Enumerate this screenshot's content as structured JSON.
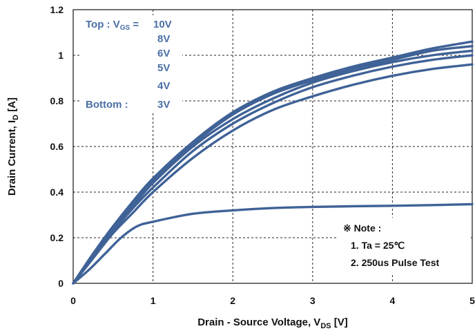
{
  "chart_data": {
    "type": "line",
    "xlabel": "Drain - Source Voltage, V",
    "xlabel_sub": "DS",
    "xlabel_unit": " [V]",
    "ylabel": "Drain Current, I",
    "ylabel_sub": "D",
    "ylabel_unit": " [A]",
    "xlim": [
      0,
      5
    ],
    "ylim": [
      0,
      1.2
    ],
    "x_ticks": [
      "0",
      "1",
      "2",
      "3",
      "4",
      "5"
    ],
    "y_ticks": [
      "0",
      "0.2",
      "0.4",
      "0.6",
      "0.8",
      "1",
      "1.2"
    ],
    "grid": "dashed",
    "legend": {
      "top_label": "Top : V",
      "top_sub": "GS",
      "top_eq": " =",
      "bottom_label": "Bottom :",
      "values": [
        "10V",
        "8V",
        "6V",
        "5V",
        "4V",
        "3V"
      ]
    },
    "note": {
      "title": "※ Note :",
      "lines": [
        "1. Ta = 25℃",
        "2. 250us Pulse Test"
      ]
    },
    "series": [
      {
        "x": [
          0,
          0.25,
          0.5,
          0.75,
          1,
          1.5,
          2,
          2.5,
          3,
          3.5,
          4,
          4.5,
          5
        ],
        "values": [
          0,
          0.13,
          0.25,
          0.36,
          0.46,
          0.62,
          0.75,
          0.84,
          0.9,
          0.95,
          0.99,
          1.03,
          1.06
        ]
      },
      {
        "x": [
          0,
          0.25,
          0.5,
          0.75,
          1,
          1.5,
          2,
          2.5,
          3,
          3.5,
          4,
          4.5,
          5
        ],
        "values": [
          0,
          0.13,
          0.25,
          0.35,
          0.45,
          0.61,
          0.74,
          0.83,
          0.89,
          0.94,
          0.98,
          1.02,
          1.04
        ]
      },
      {
        "x": [
          0,
          0.25,
          0.5,
          0.75,
          1,
          1.5,
          2,
          2.5,
          3,
          3.5,
          4,
          4.5,
          5
        ],
        "values": [
          0,
          0.12,
          0.24,
          0.34,
          0.44,
          0.6,
          0.72,
          0.81,
          0.88,
          0.93,
          0.97,
          1.0,
          1.02
        ]
      },
      {
        "x": [
          0,
          0.25,
          0.5,
          0.75,
          1,
          1.5,
          2,
          2.5,
          3,
          3.5,
          4,
          4.5,
          5
        ],
        "values": [
          0,
          0.12,
          0.23,
          0.33,
          0.42,
          0.58,
          0.7,
          0.79,
          0.86,
          0.91,
          0.95,
          0.98,
          1.0
        ]
      },
      {
        "x": [
          0,
          0.25,
          0.5,
          0.75,
          1,
          1.5,
          2,
          2.5,
          3,
          3.5,
          4,
          4.5,
          5
        ],
        "values": [
          0,
          0.11,
          0.22,
          0.31,
          0.4,
          0.55,
          0.67,
          0.76,
          0.82,
          0.87,
          0.91,
          0.94,
          0.96
        ]
      },
      {
        "x": [
          0,
          0.2,
          0.4,
          0.6,
          0.8,
          1,
          1.5,
          2,
          2.5,
          3,
          3.5,
          4,
          4.5,
          5
        ],
        "values": [
          0,
          0.06,
          0.13,
          0.2,
          0.25,
          0.27,
          0.305,
          0.32,
          0.33,
          0.335,
          0.338,
          0.34,
          0.343,
          0.347
        ]
      }
    ],
    "colors": {
      "curve": "#3f6297",
      "legend": "#4a6fa5",
      "grid": "#222222",
      "text": "#111111"
    }
  }
}
